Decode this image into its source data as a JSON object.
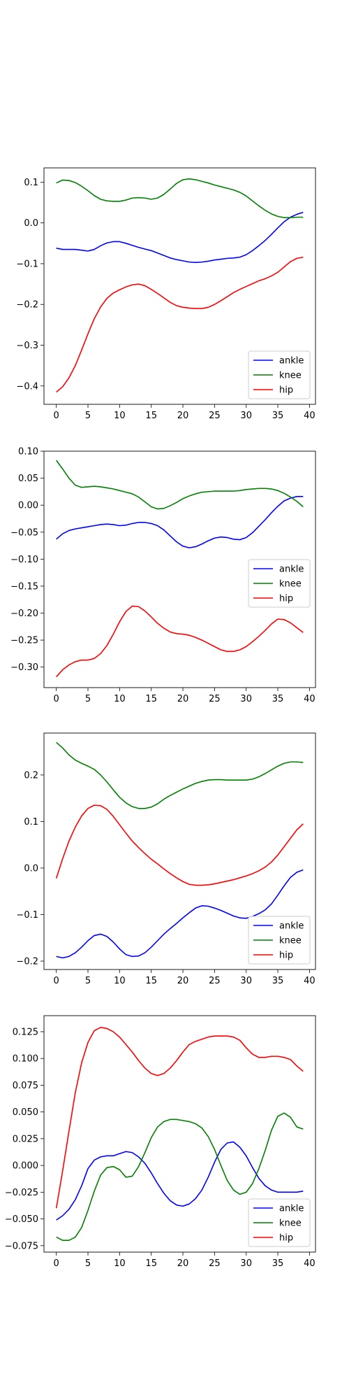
{
  "figure": {
    "background": "#ffffff",
    "series_colors": {
      "ankle": "#0000ff",
      "knee": "#008000",
      "hip": "#ff0000"
    }
  },
  "chart_data": [
    {
      "type": "line",
      "title": "",
      "xlabel": "",
      "ylabel": "",
      "xlim": [
        -1.95,
        40.95
      ],
      "ylim": [
        -0.445,
        0.135
      ],
      "xticks": [
        0,
        5,
        10,
        15,
        20,
        25,
        30,
        35,
        40
      ],
      "yticks": [
        -0.4,
        -0.3,
        -0.2,
        -0.1,
        0.0,
        0.1
      ],
      "ytick_labels": [
        "−0.4",
        "−0.3",
        "−0.2",
        "−0.1",
        "0.0",
        "0.1"
      ],
      "legend": {
        "position": "lower right",
        "entries": [
          "ankle",
          "knee",
          "hip"
        ]
      },
      "x": [
        0,
        1,
        2,
        3,
        4,
        5,
        6,
        7,
        8,
        9,
        10,
        11,
        12,
        13,
        14,
        15,
        16,
        17,
        18,
        19,
        20,
        21,
        22,
        23,
        24,
        25,
        26,
        27,
        28,
        29,
        30,
        31,
        32,
        33,
        34,
        35,
        36,
        37,
        38,
        39
      ],
      "series": [
        {
          "name": "ankle",
          "color": "#0000ff",
          "values": [
            -0.062,
            -0.065,
            -0.065,
            -0.065,
            -0.067,
            -0.069,
            -0.065,
            -0.056,
            -0.049,
            -0.046,
            -0.046,
            -0.05,
            -0.055,
            -0.06,
            -0.064,
            -0.068,
            -0.074,
            -0.08,
            -0.086,
            -0.09,
            -0.093,
            -0.096,
            -0.097,
            -0.096,
            -0.094,
            -0.091,
            -0.089,
            -0.087,
            -0.086,
            -0.084,
            -0.078,
            -0.068,
            -0.056,
            -0.043,
            -0.028,
            -0.012,
            0.003,
            0.014,
            0.021,
            0.026
          ]
        },
        {
          "name": "knee",
          "color": "#008000",
          "values": [
            0.098,
            0.105,
            0.104,
            0.099,
            0.09,
            0.079,
            0.067,
            0.058,
            0.054,
            0.053,
            0.053,
            0.056,
            0.061,
            0.062,
            0.061,
            0.058,
            0.061,
            0.07,
            0.083,
            0.097,
            0.106,
            0.108,
            0.106,
            0.102,
            0.098,
            0.093,
            0.089,
            0.085,
            0.081,
            0.075,
            0.066,
            0.054,
            0.042,
            0.031,
            0.022,
            0.016,
            0.013,
            0.013,
            0.014,
            0.014
          ]
        },
        {
          "name": "hip",
          "color": "#ff0000",
          "values": [
            -0.415,
            -0.402,
            -0.38,
            -0.35,
            -0.312,
            -0.272,
            -0.235,
            -0.206,
            -0.185,
            -0.172,
            -0.164,
            -0.157,
            -0.152,
            -0.15,
            -0.154,
            -0.163,
            -0.173,
            -0.184,
            -0.195,
            -0.203,
            -0.207,
            -0.209,
            -0.21,
            -0.21,
            -0.207,
            -0.2,
            -0.191,
            -0.181,
            -0.171,
            -0.163,
            -0.156,
            -0.149,
            -0.142,
            -0.137,
            -0.13,
            -0.121,
            -0.108,
            -0.095,
            -0.087,
            -0.084
          ]
        }
      ]
    },
    {
      "type": "line",
      "title": "",
      "xlabel": "",
      "ylabel": "",
      "xlim": [
        -1.95,
        40.95
      ],
      "ylim": [
        -0.338,
        0.1
      ],
      "xticks": [
        0,
        5,
        10,
        15,
        20,
        25,
        30,
        35,
        40
      ],
      "yticks": [
        -0.3,
        -0.25,
        -0.2,
        -0.15,
        -0.1,
        -0.05,
        0.0,
        0.05,
        0.1
      ],
      "ytick_labels": [
        "−0.30",
        "−0.25",
        "−0.20",
        "−0.15",
        "−0.10",
        "−0.05",
        "0.00",
        "0.05",
        "0.10"
      ],
      "legend": {
        "position": "center right",
        "entries": [
          "ankle",
          "knee",
          "hip"
        ]
      },
      "x": [
        0,
        1,
        2,
        3,
        4,
        5,
        6,
        7,
        8,
        9,
        10,
        11,
        12,
        13,
        14,
        15,
        16,
        17,
        18,
        19,
        20,
        21,
        22,
        23,
        24,
        25,
        26,
        27,
        28,
        29,
        30,
        31,
        32,
        33,
        34,
        35,
        36,
        37,
        38,
        39
      ],
      "series": [
        {
          "name": "ankle",
          "color": "#0000ff",
          "values": [
            -0.063,
            -0.053,
            -0.047,
            -0.044,
            -0.042,
            -0.04,
            -0.038,
            -0.036,
            -0.035,
            -0.036,
            -0.038,
            -0.037,
            -0.034,
            -0.032,
            -0.032,
            -0.034,
            -0.038,
            -0.046,
            -0.057,
            -0.068,
            -0.076,
            -0.079,
            -0.077,
            -0.072,
            -0.066,
            -0.061,
            -0.059,
            -0.06,
            -0.063,
            -0.064,
            -0.06,
            -0.051,
            -0.039,
            -0.027,
            -0.014,
            -0.002,
            0.008,
            0.013,
            0.016,
            0.016
          ]
        },
        {
          "name": "knee",
          "color": "#008000",
          "values": [
            0.083,
            0.067,
            0.05,
            0.037,
            0.033,
            0.034,
            0.035,
            0.034,
            0.032,
            0.03,
            0.027,
            0.024,
            0.021,
            0.015,
            0.006,
            -0.003,
            -0.007,
            -0.006,
            -0.001,
            0.005,
            0.012,
            0.017,
            0.021,
            0.024,
            0.025,
            0.026,
            0.026,
            0.026,
            0.026,
            0.027,
            0.029,
            0.03,
            0.031,
            0.031,
            0.03,
            0.027,
            0.022,
            0.015,
            0.007,
            -0.003
          ]
        },
        {
          "name": "hip",
          "color": "#ff0000",
          "values": [
            -0.318,
            -0.305,
            -0.296,
            -0.29,
            -0.287,
            -0.287,
            -0.284,
            -0.275,
            -0.26,
            -0.239,
            -0.216,
            -0.197,
            -0.187,
            -0.188,
            -0.196,
            -0.207,
            -0.219,
            -0.228,
            -0.235,
            -0.238,
            -0.239,
            -0.241,
            -0.245,
            -0.25,
            -0.256,
            -0.262,
            -0.268,
            -0.271,
            -0.271,
            -0.268,
            -0.262,
            -0.253,
            -0.243,
            -0.232,
            -0.22,
            -0.211,
            -0.212,
            -0.218,
            -0.227,
            -0.236
          ]
        }
      ]
    },
    {
      "type": "line",
      "title": "",
      "xlabel": "",
      "ylabel": "",
      "xlim": [
        -1.95,
        40.95
      ],
      "ylim": [
        -0.218,
        0.29
      ],
      "xticks": [
        0,
        5,
        10,
        15,
        20,
        25,
        30,
        35,
        40
      ],
      "yticks": [
        -0.2,
        -0.1,
        0.0,
        0.1,
        0.2
      ],
      "ytick_labels": [
        "−0.2",
        "−0.1",
        "0.0",
        "0.1",
        "0.2"
      ],
      "legend": {
        "position": "lower right",
        "entries": [
          "ankle",
          "knee",
          "hip"
        ]
      },
      "x": [
        0,
        1,
        2,
        3,
        4,
        5,
        6,
        7,
        8,
        9,
        10,
        11,
        12,
        13,
        14,
        15,
        16,
        17,
        18,
        19,
        20,
        21,
        22,
        23,
        24,
        25,
        26,
        27,
        28,
        29,
        30,
        31,
        32,
        33,
        34,
        35,
        36,
        37,
        38,
        39
      ],
      "series": [
        {
          "name": "ankle",
          "color": "#0000ff",
          "values": [
            -0.19,
            -0.193,
            -0.19,
            -0.182,
            -0.17,
            -0.156,
            -0.145,
            -0.142,
            -0.147,
            -0.159,
            -0.174,
            -0.186,
            -0.19,
            -0.189,
            -0.182,
            -0.17,
            -0.156,
            -0.142,
            -0.13,
            -0.119,
            -0.107,
            -0.096,
            -0.086,
            -0.081,
            -0.082,
            -0.086,
            -0.091,
            -0.097,
            -0.103,
            -0.107,
            -0.108,
            -0.104,
            -0.098,
            -0.09,
            -0.077,
            -0.058,
            -0.038,
            -0.02,
            -0.009,
            -0.004
          ]
        },
        {
          "name": "knee",
          "color": "#008000",
          "values": [
            0.27,
            0.258,
            0.243,
            0.232,
            0.225,
            0.219,
            0.212,
            0.2,
            0.185,
            0.168,
            0.152,
            0.14,
            0.132,
            0.128,
            0.128,
            0.131,
            0.138,
            0.148,
            0.156,
            0.163,
            0.17,
            0.176,
            0.182,
            0.186,
            0.189,
            0.19,
            0.19,
            0.189,
            0.189,
            0.189,
            0.189,
            0.191,
            0.196,
            0.203,
            0.211,
            0.219,
            0.225,
            0.228,
            0.228,
            0.227
          ]
        },
        {
          "name": "hip",
          "color": "#ff0000",
          "values": [
            -0.022,
            0.02,
            0.058,
            0.088,
            0.112,
            0.128,
            0.135,
            0.134,
            0.126,
            0.111,
            0.093,
            0.075,
            0.058,
            0.044,
            0.031,
            0.019,
            0.009,
            -0.002,
            -0.012,
            -0.021,
            -0.029,
            -0.035,
            -0.037,
            -0.037,
            -0.036,
            -0.034,
            -0.031,
            -0.028,
            -0.025,
            -0.021,
            -0.017,
            -0.012,
            -0.006,
            0.002,
            0.013,
            0.028,
            0.046,
            0.064,
            0.082,
            0.095
          ]
        }
      ]
    },
    {
      "type": "line",
      "title": "",
      "xlabel": "",
      "ylabel": "",
      "xlim": [
        -1.95,
        40.95
      ],
      "ylim": [
        -0.081,
        0.14
      ],
      "xticks": [
        0,
        5,
        10,
        15,
        20,
        25,
        30,
        35,
        40
      ],
      "yticks": [
        -0.075,
        -0.05,
        -0.025,
        0.0,
        0.025,
        0.05,
        0.075,
        0.1,
        0.125
      ],
      "ytick_labels": [
        "−0.075",
        "−0.050",
        "−0.025",
        "0.000",
        "0.025",
        "0.050",
        "0.075",
        "0.100",
        "0.125"
      ],
      "legend": {
        "position": "lower right",
        "entries": [
          "ankle",
          "knee",
          "hip"
        ]
      },
      "x": [
        0,
        1,
        2,
        3,
        4,
        5,
        6,
        7,
        8,
        9,
        10,
        11,
        12,
        13,
        14,
        15,
        16,
        17,
        18,
        19,
        20,
        21,
        22,
        23,
        24,
        25,
        26,
        27,
        28,
        29,
        30,
        31,
        32,
        33,
        34,
        35,
        36,
        37,
        38,
        39
      ],
      "series": [
        {
          "name": "ankle",
          "color": "#0000ff",
          "values": [
            -0.051,
            -0.047,
            -0.041,
            -0.032,
            -0.019,
            -0.003,
            0.005,
            0.008,
            0.009,
            0.009,
            0.011,
            0.013,
            0.012,
            0.008,
            0.002,
            -0.007,
            -0.017,
            -0.026,
            -0.033,
            -0.037,
            -0.038,
            -0.036,
            -0.031,
            -0.023,
            -0.011,
            0.003,
            0.015,
            0.021,
            0.022,
            0.017,
            0.009,
            -0.002,
            -0.012,
            -0.019,
            -0.023,
            -0.025,
            -0.025,
            -0.025,
            -0.025,
            -0.024
          ]
        },
        {
          "name": "knee",
          "color": "#008000",
          "values": [
            -0.067,
            -0.07,
            -0.07,
            -0.067,
            -0.058,
            -0.042,
            -0.024,
            -0.009,
            -0.002,
            -0.001,
            -0.004,
            -0.011,
            -0.01,
            -0.001,
            0.012,
            0.026,
            0.036,
            0.041,
            0.043,
            0.043,
            0.042,
            0.041,
            0.039,
            0.035,
            0.027,
            0.015,
            0.0,
            -0.014,
            -0.023,
            -0.027,
            -0.025,
            -0.017,
            -0.003,
            0.014,
            0.033,
            0.046,
            0.049,
            0.045,
            0.036,
            0.034
          ]
        },
        {
          "name": "hip",
          "color": "#ff0000",
          "values": [
            -0.04,
            -0.005,
            0.032,
            0.068,
            0.096,
            0.115,
            0.126,
            0.129,
            0.128,
            0.125,
            0.12,
            0.113,
            0.106,
            0.098,
            0.091,
            0.086,
            0.084,
            0.086,
            0.091,
            0.098,
            0.106,
            0.113,
            0.116,
            0.118,
            0.12,
            0.121,
            0.121,
            0.121,
            0.12,
            0.117,
            0.11,
            0.104,
            0.101,
            0.101,
            0.102,
            0.102,
            0.101,
            0.099,
            0.093,
            0.088
          ]
        }
      ]
    }
  ]
}
